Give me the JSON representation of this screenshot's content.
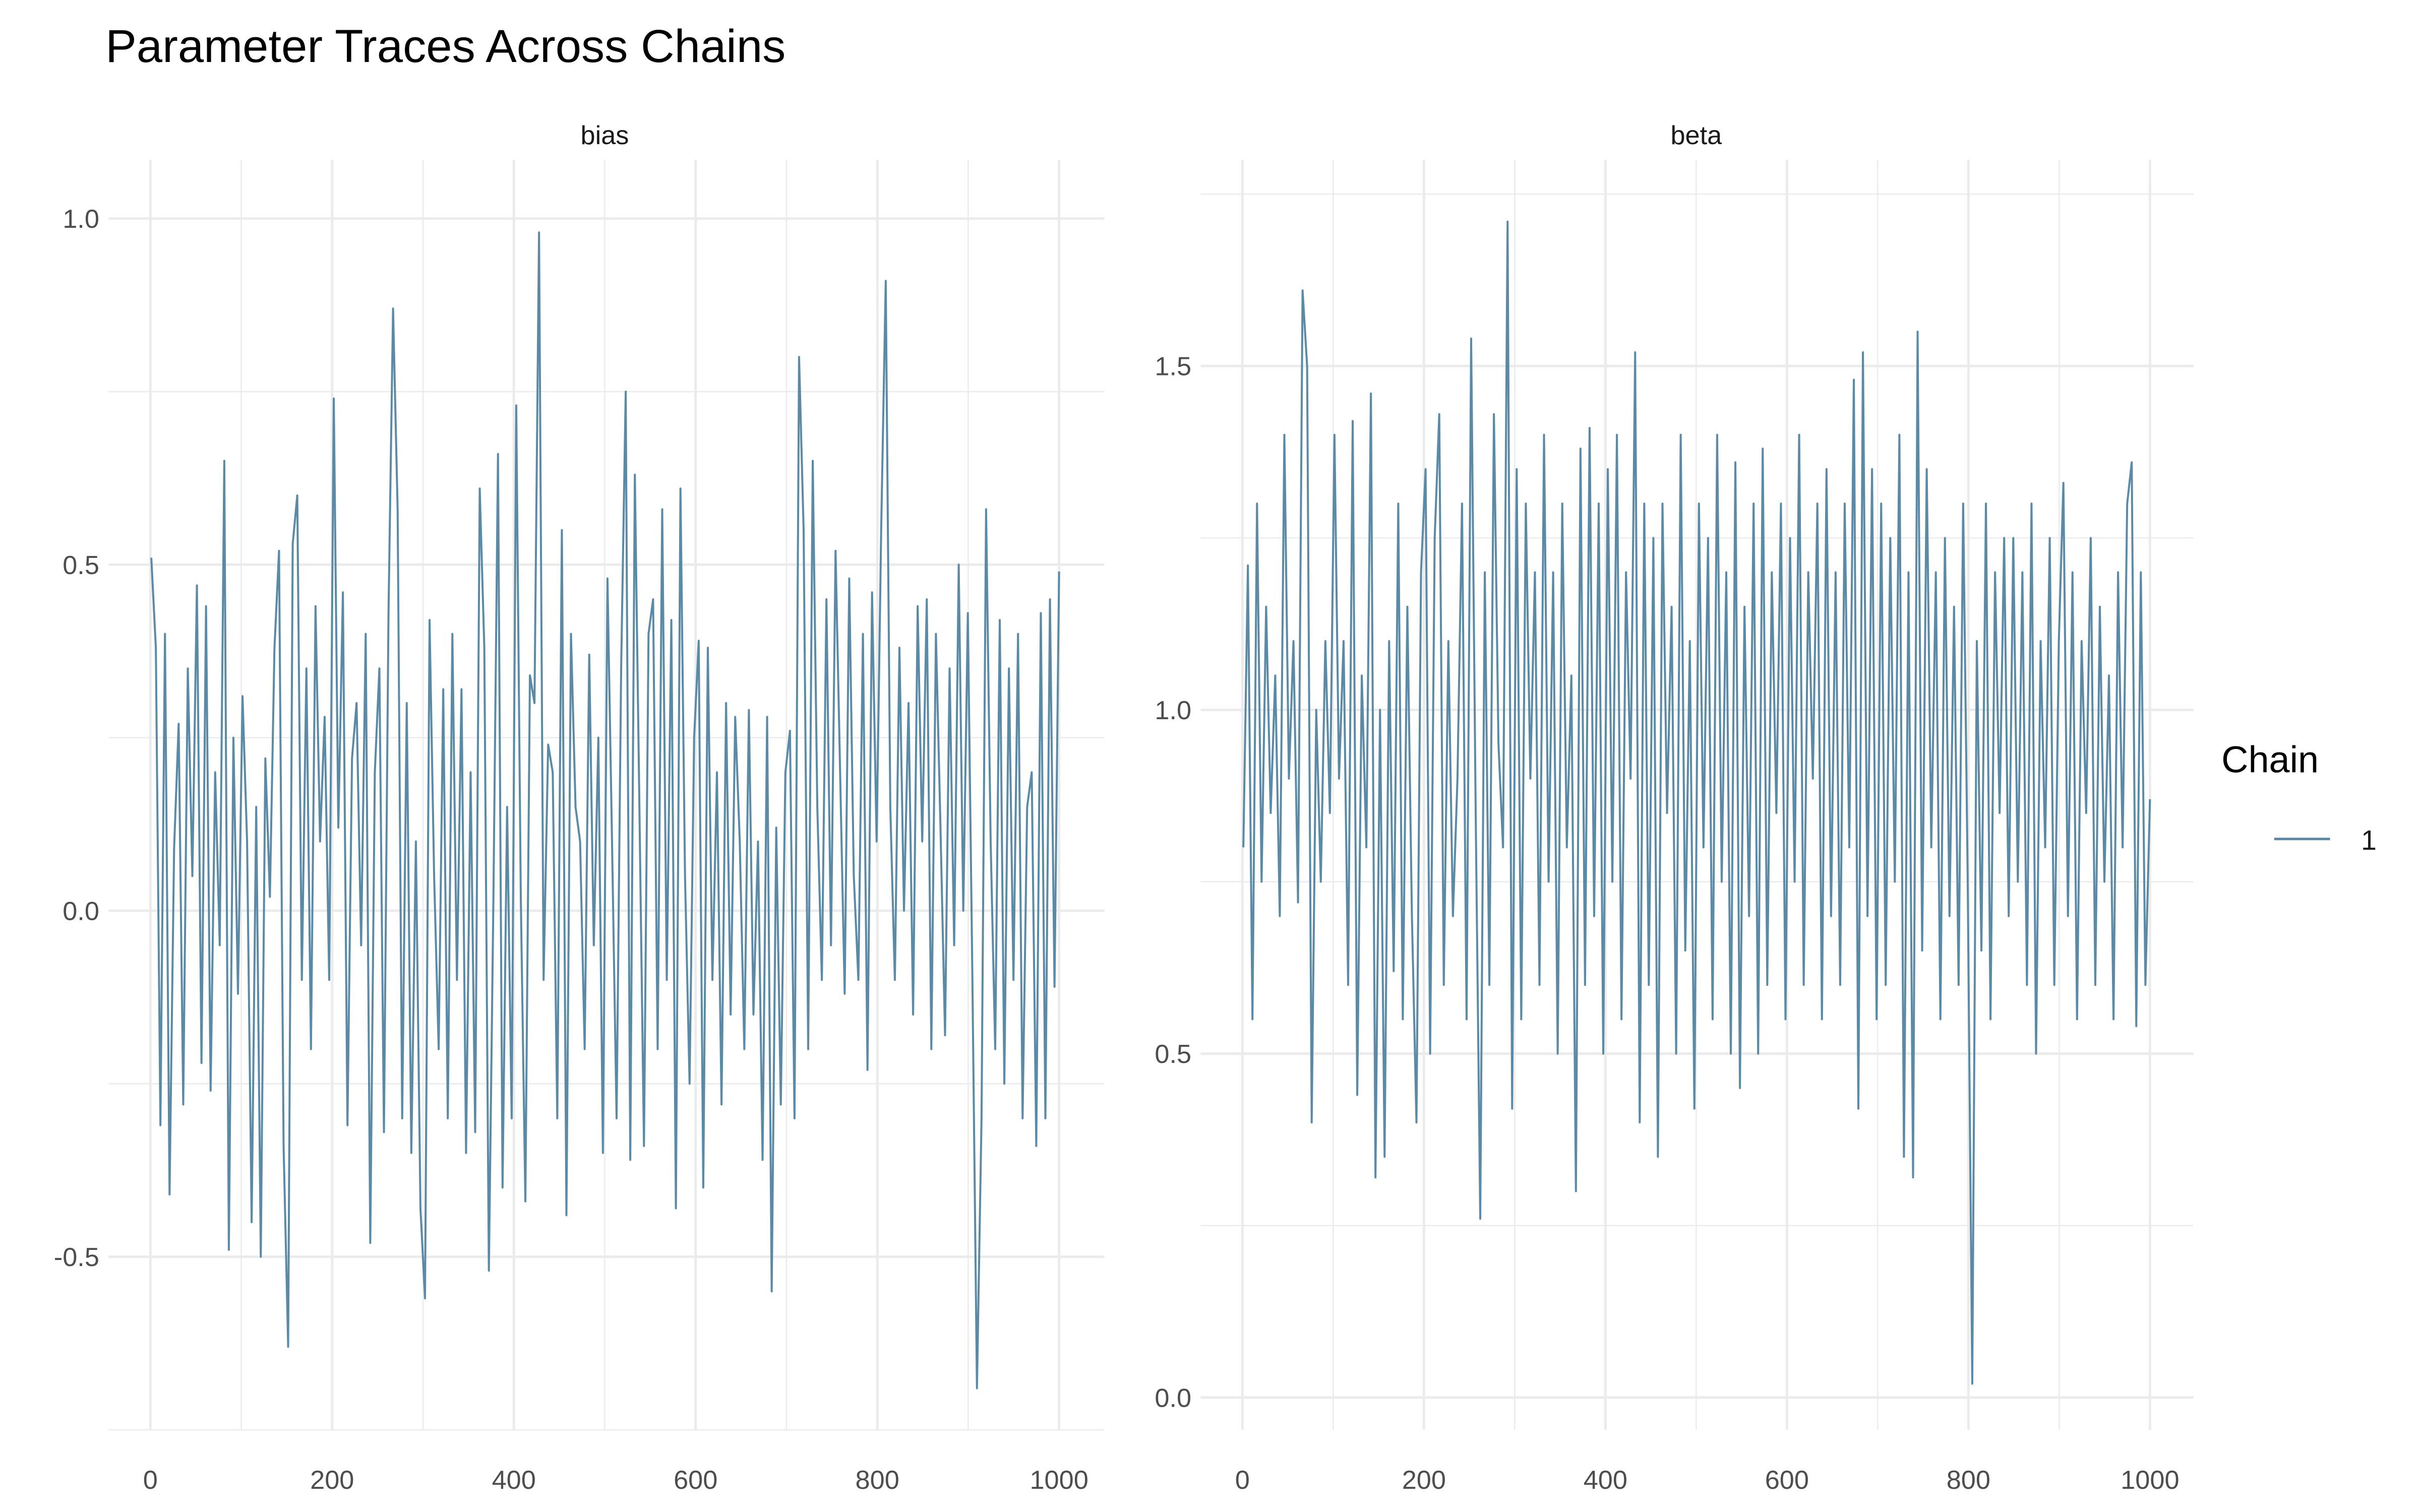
{
  "chart_data": [
    {
      "type": "line",
      "title": "Parameter Traces Across Chains",
      "panel": "bias",
      "xlabel": "",
      "ylabel": "",
      "x_start": 1,
      "x_end": 1000,
      "xlim": [
        -46,
        1050
      ],
      "ylim": [
        -0.75,
        1.085
      ],
      "x_ticks": [
        0,
        200,
        400,
        600,
        800,
        1000
      ],
      "y_ticks": [
        -0.5,
        0.0,
        0.5,
        1.0
      ],
      "x_tick_labels": [
        "0",
        "200",
        "400",
        "600",
        "800",
        "1000"
      ],
      "y_tick_labels": [
        "-0.5",
        "0.0",
        "0.5",
        "1.0"
      ],
      "grid": true,
      "series": [
        {
          "name": "1",
          "values": [
            0.51,
            0.38,
            -0.31,
            0.4,
            -0.41,
            0.09,
            0.27,
            -0.28,
            0.35,
            0.05,
            0.47,
            -0.22,
            0.44,
            -0.26,
            0.2,
            -0.05,
            0.65,
            -0.49,
            0.25,
            -0.12,
            0.31,
            0.1,
            -0.45,
            0.15,
            -0.5,
            0.22,
            0.02,
            0.38,
            0.52,
            -0.34,
            -0.63,
            0.53,
            0.6,
            -0.1,
            0.35,
            -0.2,
            0.44,
            0.1,
            0.28,
            -0.1,
            0.74,
            0.12,
            0.46,
            -0.31,
            0.22,
            0.3,
            -0.05,
            0.4,
            -0.48,
            0.2,
            0.35,
            -0.32,
            0.43,
            0.87,
            0.58,
            -0.3,
            0.3,
            -0.35,
            0.1,
            -0.43,
            -0.56,
            0.42,
            0.05,
            -0.2,
            0.32,
            -0.3,
            0.4,
            -0.1,
            0.32,
            -0.35,
            0.2,
            -0.32,
            0.61,
            0.38,
            -0.52,
            0.02,
            0.66,
            -0.4,
            0.15,
            -0.3,
            0.73,
            0.02,
            -0.42,
            0.34,
            0.3,
            0.98,
            -0.1,
            0.24,
            0.2,
            -0.3,
            0.55,
            -0.44,
            0.4,
            0.15,
            0.1,
            -0.2,
            0.37,
            -0.05,
            0.25,
            -0.35,
            0.48,
            0.1,
            -0.3,
            0.35,
            0.75,
            -0.36,
            0.63,
            0.15,
            -0.34,
            0.4,
            0.45,
            -0.2,
            0.58,
            -0.1,
            0.42,
            -0.43,
            0.61,
            0.05,
            -0.25,
            0.25,
            0.39,
            -0.4,
            0.38,
            -0.1,
            0.2,
            -0.28,
            0.3,
            -0.15,
            0.28,
            0.1,
            -0.2,
            0.29,
            -0.15,
            0.1,
            -0.36,
            0.28,
            -0.55,
            0.12,
            -0.28,
            0.2,
            0.26,
            -0.3,
            0.8,
            0.55,
            -0.2,
            0.65,
            0.15,
            -0.1,
            0.45,
            -0.05,
            0.52,
            0.2,
            -0.12,
            0.48,
            0.05,
            -0.1,
            0.4,
            -0.23,
            0.46,
            0.1,
            0.55,
            0.91,
            0.15,
            -0.1,
            0.38,
            0.0,
            0.3,
            -0.15,
            0.44,
            0.1,
            0.45,
            -0.2,
            0.4,
            0.12,
            -0.18,
            0.35,
            -0.05,
            0.5,
            0.0,
            0.43,
            -0.1,
            -0.69,
            -0.3,
            0.58,
            0.1,
            -0.2,
            0.42,
            -0.25,
            0.35,
            -0.1,
            0.4,
            -0.3,
            0.15,
            0.2,
            -0.34,
            0.43,
            -0.3,
            0.45,
            -0.11,
            0.49
          ]
        }
      ]
    },
    {
      "type": "line",
      "panel": "beta",
      "xlabel": "",
      "ylabel": "",
      "x_start": 1,
      "x_end": 1000,
      "xlim": [
        -46,
        1048
      ],
      "ylim": [
        -0.047,
        1.8
      ],
      "x_ticks": [
        0,
        200,
        400,
        600,
        800,
        1000
      ],
      "y_ticks": [
        0.0,
        0.5,
        1.0,
        1.5
      ],
      "x_tick_labels": [
        "0",
        "200",
        "400",
        "600",
        "800",
        "1000"
      ],
      "y_tick_labels": [
        "0.0",
        "0.5",
        "1.0",
        "1.5"
      ],
      "grid": true,
      "series": [
        {
          "name": "1",
          "values": [
            0.8,
            1.21,
            0.55,
            1.3,
            0.75,
            1.15,
            0.85,
            1.05,
            0.7,
            1.4,
            0.9,
            1.1,
            0.72,
            1.61,
            1.5,
            0.4,
            1.0,
            0.75,
            1.1,
            0.85,
            1.4,
            0.9,
            1.1,
            0.6,
            1.42,
            0.44,
            1.05,
            0.8,
            1.46,
            0.32,
            1.0,
            0.35,
            1.1,
            0.62,
            1.3,
            0.55,
            1.15,
            0.7,
            0.4,
            1.2,
            1.35,
            0.5,
            1.25,
            1.43,
            0.6,
            1.1,
            0.7,
            0.9,
            1.3,
            0.55,
            1.54,
            0.85,
            0.26,
            1.2,
            0.6,
            1.43,
            0.95,
            0.8,
            1.71,
            0.42,
            1.35,
            0.55,
            1.3,
            0.9,
            1.2,
            0.6,
            1.4,
            0.75,
            1.2,
            0.5,
            1.3,
            0.8,
            1.05,
            0.3,
            1.38,
            0.6,
            1.41,
            0.7,
            1.3,
            0.5,
            1.35,
            0.75,
            1.4,
            0.55,
            1.2,
            0.9,
            1.52,
            0.4,
            1.3,
            0.6,
            1.25,
            0.35,
            1.3,
            0.85,
            1.15,
            0.5,
            1.4,
            0.65,
            1.1,
            0.42,
            1.3,
            0.8,
            1.25,
            0.55,
            1.4,
            0.75,
            1.2,
            0.5,
            1.36,
            0.45,
            1.15,
            0.7,
            1.3,
            0.5,
            1.38,
            0.6,
            1.2,
            0.85,
            1.3,
            0.55,
            1.25,
            0.75,
            1.4,
            0.6,
            1.2,
            0.9,
            1.3,
            0.55,
            1.35,
            0.7,
            1.2,
            0.6,
            1.3,
            0.8,
            1.48,
            0.42,
            1.52,
            0.7,
            1.35,
            0.55,
            1.3,
            0.6,
            1.25,
            0.75,
            1.4,
            0.35,
            1.2,
            0.32,
            1.55,
            0.65,
            1.35,
            0.8,
            1.2,
            0.55,
            1.25,
            0.7,
            1.15,
            0.6,
            1.3,
            0.75,
            0.02,
            1.1,
            0.65,
            1.3,
            0.55,
            1.2,
            0.85,
            1.25,
            0.7,
            1.25,
            0.75,
            1.2,
            0.6,
            1.3,
            0.5,
            1.1,
            0.8,
            1.25,
            0.6,
            1.1,
            1.33,
            0.7,
            1.2,
            0.55,
            1.1,
            0.85,
            1.25,
            0.6,
            1.15,
            0.75,
            1.05,
            0.55,
            1.2,
            0.8,
            1.3,
            1.36,
            0.54,
            1.2,
            0.6,
            0.87
          ]
        }
      ]
    }
  ],
  "title": "Parameter Traces Across Chains",
  "legend": {
    "title": "Chain",
    "placement": "right",
    "entries": [
      {
        "label": "1",
        "color": "#5a8aa6"
      }
    ]
  },
  "colors": {
    "line": "#5a8aa6",
    "grid": "#ebebeb",
    "tick_text": "#4d4d4d"
  }
}
